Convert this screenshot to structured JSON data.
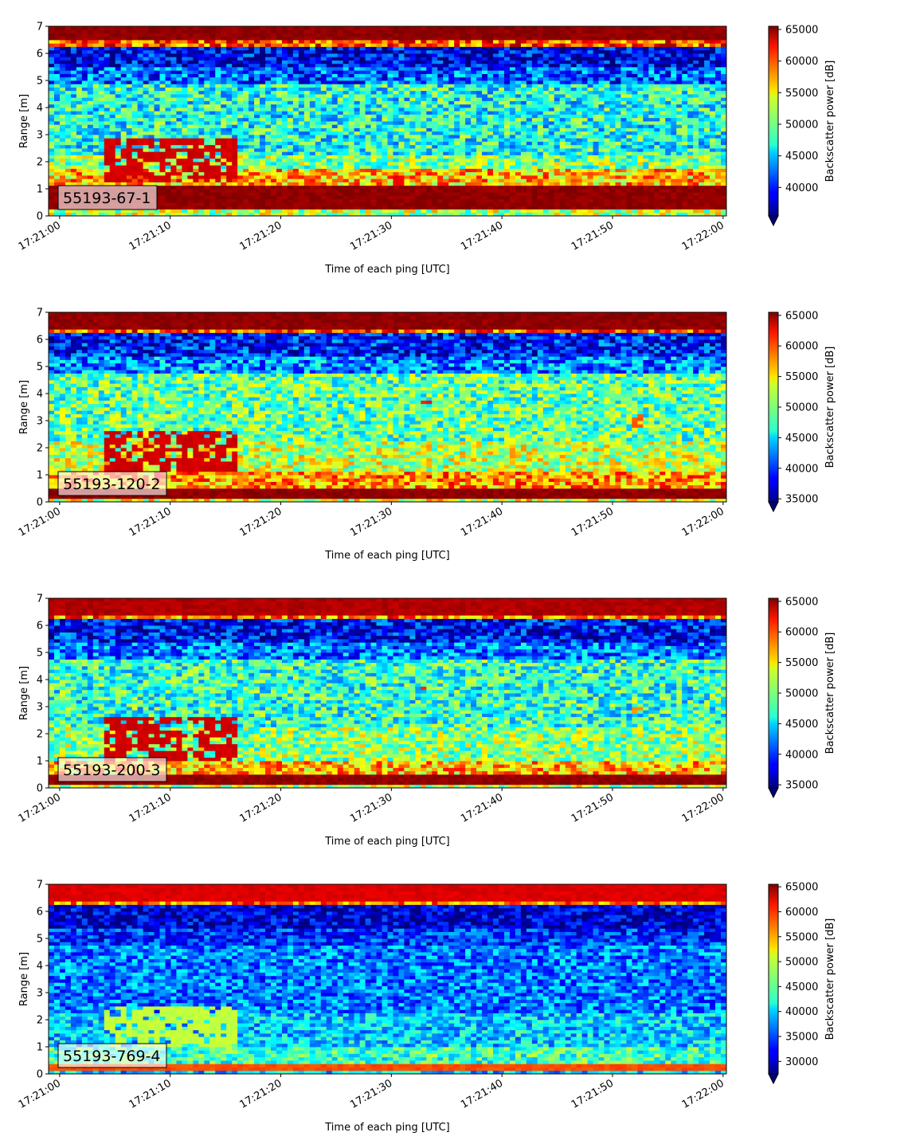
{
  "chart_data": [
    {
      "type": "heatmap",
      "panel_label": "55193-67-1",
      "xlabel": "Time of each ping [UTC]",
      "ylabel": "Range [m]",
      "xticks": [
        "17:21:00",
        "17:21:10",
        "17:21:20",
        "17:21:30",
        "17:21:40",
        "17:21:50",
        "17:22:00"
      ],
      "xlim_seconds": [
        -1,
        60.3
      ],
      "ylim": [
        0,
        7
      ],
      "yticks": [
        0,
        1,
        2,
        3,
        4,
        5,
        6,
        7
      ],
      "colorbar": {
        "label": "Backscatter power [dB]",
        "colormap": "jet",
        "range": [
          35500,
          65500
        ],
        "ticks": [
          40000,
          45000,
          50000,
          55000,
          60000,
          65000
        ],
        "extend": "min"
      },
      "profile": {
        "surface_band": [
          6.5,
          7.0
        ],
        "surface_level": 65000,
        "near_surface_dip": 38500,
        "background_level": 47500,
        "bottom_band": [
          0.25,
          1.1
        ],
        "bottom_level": 65000,
        "bottom_halo_level": 56000
      },
      "features": [
        {
          "t_start": 4,
          "t_end": 16,
          "range_low": 1.2,
          "range_high": 2.9,
          "level": 64000
        },
        {
          "t_start": 30,
          "t_end": 31,
          "range_low": 1.1,
          "range_high": 1.5,
          "level": 63000
        }
      ]
    },
    {
      "type": "heatmap",
      "panel_label": "55193-120-2",
      "xlabel": "Time of each ping [UTC]",
      "ylabel": "Range [m]",
      "xticks": [
        "17:21:00",
        "17:21:10",
        "17:21:20",
        "17:21:30",
        "17:21:40",
        "17:21:50",
        "17:22:00"
      ],
      "xlim_seconds": [
        -1,
        60.3
      ],
      "ylim": [
        0,
        7
      ],
      "yticks": [
        0,
        1,
        2,
        3,
        4,
        5,
        6,
        7
      ],
      "colorbar": {
        "label": "Backscatter power [dB]",
        "colormap": "jet",
        "range": [
          34500,
          65500
        ],
        "ticks": [
          35000,
          40000,
          45000,
          50000,
          55000,
          60000,
          65000
        ],
        "extend": "min"
      },
      "profile": {
        "surface_band": [
          6.4,
          7.0
        ],
        "surface_level": 65000,
        "near_surface_dip": 39000,
        "background_level": 49000,
        "bottom_band": [
          0.15,
          0.55
        ],
        "bottom_level": 65000,
        "bottom_halo_level": 57000
      },
      "features": [
        {
          "t_start": 4,
          "t_end": 16,
          "range_low": 1.1,
          "range_high": 2.6,
          "level": 64000
        },
        {
          "t_start": 32.5,
          "t_end": 33.5,
          "range_low": 3.6,
          "range_high": 3.8,
          "level": 62000
        },
        {
          "t_start": 52,
          "t_end": 53,
          "range_low": 2.8,
          "range_high": 3.3,
          "level": 60000
        }
      ]
    },
    {
      "type": "heatmap",
      "panel_label": "55193-200-3",
      "xlabel": "Time of each ping [UTC]",
      "ylabel": "Range [m]",
      "xticks": [
        "17:21:00",
        "17:21:10",
        "17:21:20",
        "17:21:30",
        "17:21:40",
        "17:21:50",
        "17:22:00"
      ],
      "xlim_seconds": [
        -1,
        60.3
      ],
      "ylim": [
        0,
        7
      ],
      "yticks": [
        0,
        1,
        2,
        3,
        4,
        5,
        6,
        7
      ],
      "colorbar": {
        "label": "Backscatter power [dB]",
        "colormap": "jet",
        "range": [
          34500,
          65500
        ],
        "ticks": [
          35000,
          40000,
          45000,
          50000,
          55000,
          60000,
          65000
        ],
        "extend": "min"
      },
      "profile": {
        "surface_band": [
          6.4,
          7.0
        ],
        "surface_level": 64000,
        "near_surface_dip": 38500,
        "background_level": 47500,
        "bottom_band": [
          0.15,
          0.45
        ],
        "bottom_level": 65000,
        "bottom_halo_level": 56000
      },
      "features": [
        {
          "t_start": 4,
          "t_end": 16,
          "range_low": 1.0,
          "range_high": 2.6,
          "level": 64000
        },
        {
          "t_start": 32.5,
          "t_end": 33.5,
          "range_low": 3.6,
          "range_high": 3.8,
          "level": 61000
        },
        {
          "t_start": 52,
          "t_end": 53,
          "range_low": 2.8,
          "range_high": 3.0,
          "level": 58000
        }
      ]
    },
    {
      "type": "heatmap",
      "panel_label": "55193-769-4",
      "xlabel": "Time of each ping [UTC]",
      "ylabel": "Range [m]",
      "xticks": [
        "17:21:00",
        "17:21:10",
        "17:21:20",
        "17:21:30",
        "17:21:40",
        "17:21:50",
        "17:22:00"
      ],
      "xlim_seconds": [
        -1,
        60.3
      ],
      "ylim": [
        0,
        7
      ],
      "yticks": [
        0,
        1,
        2,
        3,
        4,
        5,
        6,
        7
      ],
      "colorbar": {
        "label": "Backscatter power [dB]",
        "colormap": "jet",
        "range": [
          27500,
          65500
        ],
        "ticks": [
          30000,
          35000,
          40000,
          45000,
          50000,
          55000,
          60000,
          65000
        ],
        "extend": "min"
      },
      "profile": {
        "surface_band": [
          6.4,
          6.7
        ],
        "surface_level": 62000,
        "near_surface_dip": 30500,
        "background_level": 37000,
        "bottom_band": [
          0.15,
          0.35
        ],
        "bottom_level": 58000,
        "bottom_halo_level": 44000
      },
      "features": [
        {
          "t_start": 4,
          "t_end": 16,
          "range_low": 1.0,
          "range_high": 2.5,
          "level": 50000
        }
      ]
    }
  ]
}
